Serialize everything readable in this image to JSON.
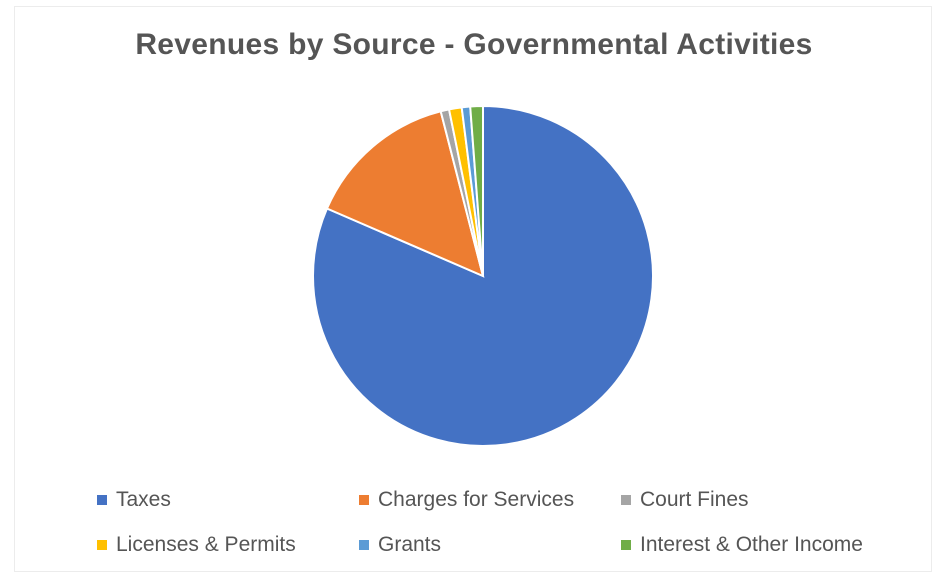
{
  "chart_data": {
    "type": "pie",
    "title": "Revenues by Source - Governmental Activities",
    "legend_position": "bottom",
    "categories": [
      "Taxes",
      "Charges for Services",
      "Court Fines",
      "Licenses & Permits",
      "Grants",
      "Interest & Other Income"
    ],
    "values": [
      81.5,
      14.5,
      0.8,
      1.2,
      0.8,
      1.2
    ],
    "unit": "%",
    "colors": [
      "#4472C4",
      "#ED7D31",
      "#A5A5A5",
      "#FFC000",
      "#5B9BD5",
      "#70AD47"
    ]
  }
}
